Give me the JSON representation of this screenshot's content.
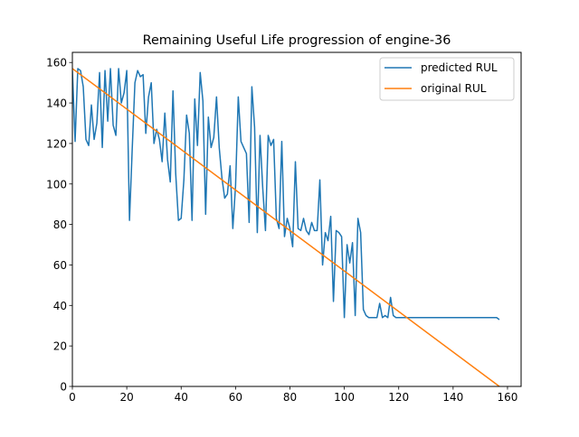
{
  "chart_data": {
    "type": "line",
    "title": "Remaining Useful Life progression of engine-36",
    "xlabel": "",
    "ylabel": "",
    "xlim": [
      0,
      165
    ],
    "ylim": [
      0,
      165
    ],
    "xticks": [
      0,
      20,
      40,
      60,
      80,
      100,
      120,
      140,
      160
    ],
    "yticks": [
      0,
      20,
      40,
      60,
      80,
      100,
      120,
      140,
      160
    ],
    "grid": false,
    "legend_position": "top-right",
    "series": [
      {
        "name": "predicted RUL",
        "color": "#1f77b4",
        "x": [
          0,
          1,
          2,
          3,
          4,
          5,
          6,
          7,
          8,
          9,
          10,
          11,
          12,
          13,
          14,
          15,
          16,
          17,
          18,
          19,
          20,
          21,
          22,
          23,
          24,
          25,
          26,
          27,
          28,
          29,
          30,
          31,
          32,
          33,
          34,
          35,
          36,
          37,
          38,
          39,
          40,
          41,
          42,
          43,
          44,
          45,
          46,
          47,
          48,
          49,
          50,
          51,
          52,
          53,
          54,
          55,
          56,
          57,
          58,
          59,
          60,
          61,
          62,
          63,
          64,
          65,
          66,
          67,
          68,
          69,
          70,
          71,
          72,
          73,
          74,
          75,
          76,
          77,
          78,
          79,
          80,
          81,
          82,
          83,
          84,
          85,
          86,
          87,
          88,
          89,
          90,
          91,
          92,
          93,
          94,
          95,
          96,
          97,
          98,
          99,
          100,
          101,
          102,
          103,
          104,
          105,
          106,
          107,
          108,
          109,
          110,
          111,
          112,
          113,
          114,
          115,
          116,
          117,
          118,
          119,
          120,
          121,
          122,
          123,
          124,
          125,
          126,
          127,
          128,
          129,
          130,
          131,
          132,
          133,
          134,
          135,
          136,
          137,
          138,
          139,
          140,
          141,
          142,
          143,
          144,
          145,
          146,
          147,
          148,
          149,
          150,
          151,
          152,
          153,
          154,
          155,
          156,
          157
        ],
        "y": [
          156,
          121,
          157,
          156,
          148,
          122,
          119,
          139,
          122,
          130,
          155,
          118,
          156,
          131,
          157,
          129,
          124,
          157,
          140,
          145,
          156,
          82,
          117,
          150,
          156,
          153,
          154,
          125,
          143,
          150,
          120,
          127,
          122,
          111,
          135,
          112,
          101,
          146,
          105,
          82,
          83,
          102,
          134,
          125,
          82,
          142,
          119,
          155,
          141,
          85,
          133,
          118,
          123,
          143,
          118,
          103,
          93,
          95,
          109,
          78,
          99,
          143,
          121,
          118,
          115,
          81,
          148,
          128,
          76,
          124,
          98,
          77,
          124,
          119,
          122,
          83,
          78,
          121,
          74,
          83,
          78,
          69,
          111,
          78,
          77,
          83,
          77,
          75,
          81,
          77,
          77,
          102,
          60,
          76,
          72,
          84,
          42,
          77,
          76,
          74,
          34,
          70,
          61,
          71,
          35,
          83,
          76,
          38,
          35,
          34,
          34,
          34,
          34,
          41,
          34,
          35,
          34,
          44,
          35,
          34,
          34,
          34,
          34,
          34,
          34,
          34,
          34,
          34,
          34,
          34,
          34,
          34,
          34,
          34,
          34,
          34,
          34,
          34,
          34,
          34,
          34,
          34,
          34,
          34,
          34,
          34,
          34,
          34,
          34,
          34,
          34,
          34,
          34,
          34,
          34,
          34,
          34,
          33
        ]
      },
      {
        "name": "original RUL",
        "color": "#ff7f0e",
        "x": [
          0,
          157
        ],
        "y": [
          157,
          0
        ]
      }
    ]
  }
}
